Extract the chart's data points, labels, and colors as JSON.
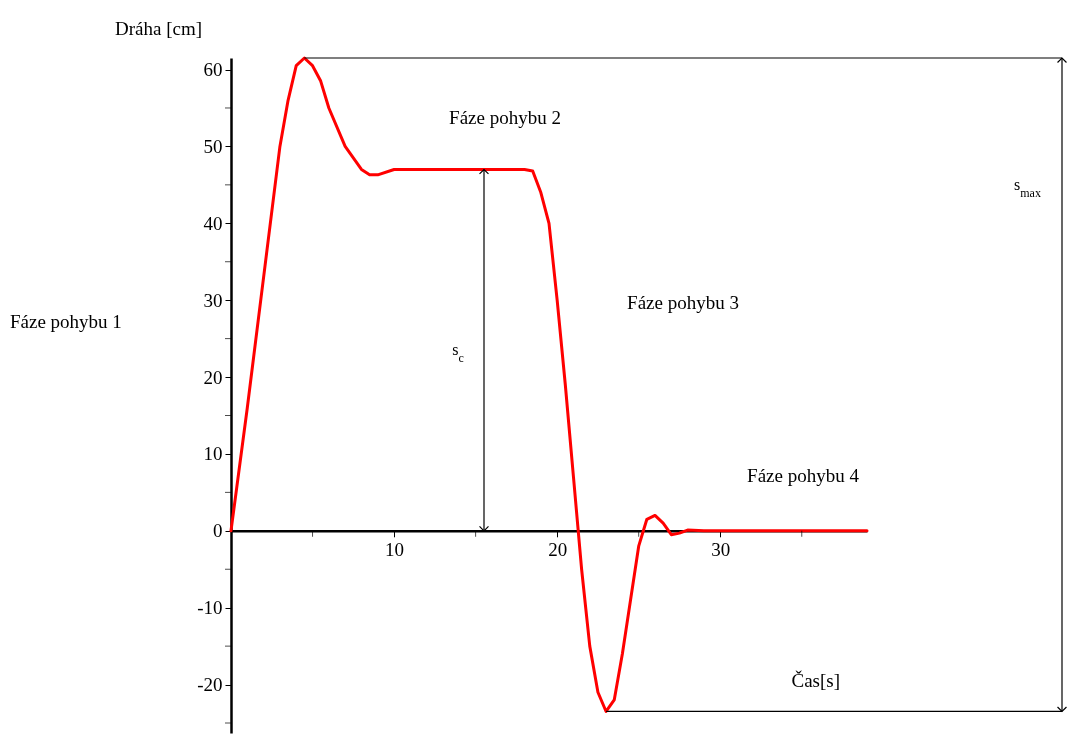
{
  "chart_data": {
    "type": "line",
    "xlabel": "Čas[s]",
    "ylabel": "Dráha [cm]",
    "x": [
      0,
      1,
      2,
      3,
      3.5,
      4,
      4.5,
      5,
      5.5,
      6,
      7,
      8,
      8.5,
      9,
      10,
      11,
      12,
      14,
      16,
      18,
      18.5,
      19,
      19.5,
      20,
      20.5,
      21,
      21.5,
      22,
      22.5,
      23,
      23.5,
      24,
      24.5,
      25,
      25.5,
      26,
      26.5,
      27,
      27.5,
      28,
      29,
      31,
      35,
      39
    ],
    "series": [
      {
        "color": "#ff0000",
        "values": [
          0,
          16,
          33,
          50,
          56,
          60.5,
          61.5,
          60.5,
          58.5,
          55,
          50,
          47,
          46.3,
          46.3,
          47,
          47,
          47,
          47,
          47,
          47,
          46.8,
          44,
          40,
          30,
          19,
          7,
          -5,
          -15,
          -21,
          -23.5,
          -22,
          -16,
          -9,
          -2,
          1.5,
          2,
          1,
          -0.5,
          -0.3,
          0.1,
          0,
          0,
          0,
          0
        ]
      }
    ],
    "xlim": [
      0,
      39
    ],
    "xticks": [
      {
        "value": 5,
        "label": null
      },
      10,
      {
        "value": 15,
        "label": null
      },
      20,
      {
        "value": 25,
        "label": null
      },
      30,
      {
        "value": 35,
        "label": null
      }
    ],
    "ylim": [
      -26.3,
      61.5
    ],
    "yticks": [
      {
        "value": -25,
        "label": null
      },
      -20,
      {
        "value": -15,
        "label": null
      },
      -10,
      {
        "value": -5,
        "label": null
      },
      0,
      {
        "value": 5,
        "label": null
      },
      10,
      {
        "value": 15,
        "label": null
      },
      20,
      {
        "value": 25,
        "label": null
      },
      30,
      {
        "value": 35,
        "label": null
      },
      40,
      {
        "value": 45,
        "label": null
      },
      50,
      {
        "value": 55,
        "label": null
      },
      60
    ],
    "grid": false,
    "ref_lines": [
      {
        "axis": "y",
        "value": 61.5,
        "color": "#000000"
      },
      {
        "axis": "y",
        "value": -23.5,
        "color": "#000000"
      }
    ],
    "annotations": [
      "Fáze pohybu 1",
      "Fáze pohybu 2",
      "Fáze pohybu 3",
      "Fáze pohybu 4",
      "s$_{c}$",
      "s$_{max}$"
    ]
  }
}
